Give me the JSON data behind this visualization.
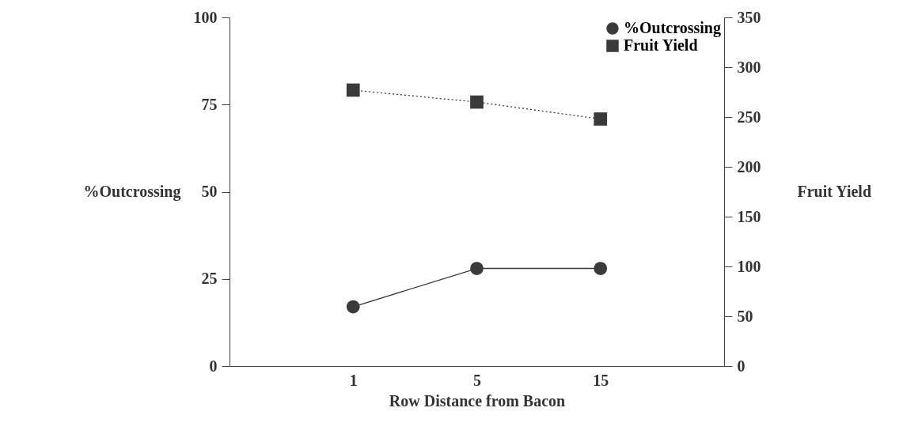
{
  "chart_data": {
    "type": "line",
    "xlabel": "Row Distance from Bacon",
    "ylabel": "%Outcrossing",
    "y2label": "Fruit Yield",
    "categories": [
      "1",
      "5",
      "15"
    ],
    "series": [
      {
        "name": "%Outcrossing",
        "color": "#3a3a3a",
        "values": [
          17,
          28,
          28
        ],
        "marker": "circle",
        "line_style": "solid"
      },
      {
        "name": "Fruit Yield",
        "color": "#3a3a3a",
        "values": [
          277,
          265,
          248
        ],
        "axis": "y2",
        "marker": "square",
        "line_style": "dotted"
      }
    ],
    "ylim": [
      0,
      100
    ],
    "yticks": [
      0,
      25,
      50,
      75,
      100
    ],
    "y2lim": [
      0,
      350
    ],
    "y2ticks": [
      0,
      50,
      100,
      150,
      200,
      250,
      300,
      350
    ],
    "grid": false,
    "legend": "top right"
  }
}
